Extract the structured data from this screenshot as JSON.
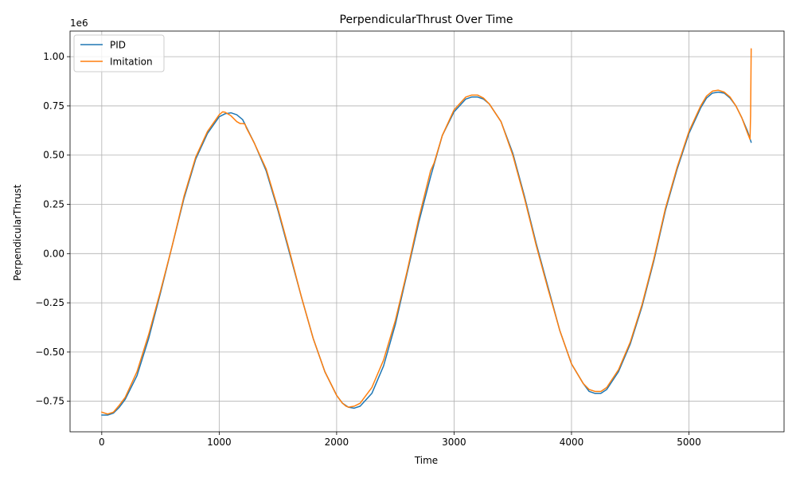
{
  "chart_data": {
    "type": "line",
    "title": "PerpendicularThrust Over Time",
    "xlabel": "Time",
    "ylabel": "PerpendicularThrust",
    "y_scale_label": "1e6",
    "xlim": [
      -270,
      5810
    ],
    "ylim": [
      -0.905,
      1.13
    ],
    "xticks": [
      0,
      1000,
      2000,
      3000,
      4000,
      5000
    ],
    "xtick_labels": [
      "0",
      "1000",
      "2000",
      "3000",
      "4000",
      "5000"
    ],
    "yticks": [
      -0.75,
      -0.5,
      -0.25,
      0.0,
      0.25,
      0.5,
      0.75,
      1.0
    ],
    "ytick_labels": [
      "−0.75",
      "−0.50",
      "−0.25",
      "0.00",
      "0.25",
      "0.50",
      "0.75",
      "1.00"
    ],
    "grid": true,
    "legend_position": "top-left",
    "series": [
      {
        "name": "PID",
        "color": "#1f77b4",
        "x": [
          0,
          50,
          100,
          150,
          200,
          300,
          400,
          500,
          600,
          700,
          800,
          900,
          1000,
          1050,
          1100,
          1150,
          1200,
          1300,
          1400,
          1500,
          1600,
          1700,
          1800,
          1900,
          2000,
          2050,
          2100,
          2150,
          2200,
          2300,
          2400,
          2500,
          2600,
          2700,
          2800,
          2900,
          3000,
          3100,
          3150,
          3200,
          3250,
          3300,
          3400,
          3500,
          3600,
          3700,
          3800,
          3900,
          4000,
          4100,
          4150,
          4200,
          4250,
          4300,
          4400,
          4500,
          4600,
          4700,
          4800,
          4900,
          5000,
          5100,
          5150,
          5200,
          5250,
          5300,
          5350,
          5400,
          5450,
          5500,
          5530
        ],
        "y": [
          -0.82,
          -0.82,
          -0.81,
          -0.78,
          -0.74,
          -0.62,
          -0.43,
          -0.2,
          0.04,
          0.28,
          0.48,
          0.61,
          0.695,
          0.71,
          0.715,
          0.705,
          0.68,
          0.56,
          0.42,
          0.22,
          0.0,
          -0.22,
          -0.43,
          -0.6,
          -0.72,
          -0.76,
          -0.78,
          -0.785,
          -0.775,
          -0.71,
          -0.57,
          -0.36,
          -0.1,
          0.16,
          0.39,
          0.6,
          0.72,
          0.785,
          0.795,
          0.795,
          0.785,
          0.76,
          0.67,
          0.51,
          0.29,
          0.05,
          -0.17,
          -0.39,
          -0.56,
          -0.66,
          -0.7,
          -0.71,
          -0.71,
          -0.69,
          -0.6,
          -0.46,
          -0.27,
          -0.04,
          0.22,
          0.43,
          0.61,
          0.74,
          0.79,
          0.815,
          0.82,
          0.815,
          0.79,
          0.75,
          0.69,
          0.62,
          0.565
        ]
      },
      {
        "name": "Imitation",
        "color": "#ff7f0e",
        "x": [
          0,
          50,
          100,
          150,
          200,
          300,
          400,
          500,
          600,
          700,
          800,
          900,
          1000,
          1030,
          1050,
          1100,
          1150,
          1180,
          1200,
          1220,
          1230,
          1300,
          1400,
          1500,
          1600,
          1700,
          1800,
          1900,
          2000,
          2050,
          2080,
          2100,
          2150,
          2200,
          2300,
          2400,
          2500,
          2600,
          2700,
          2800,
          2830,
          2900,
          3000,
          3100,
          3150,
          3200,
          3250,
          3300,
          3400,
          3500,
          3600,
          3700,
          3800,
          3900,
          4000,
          4100,
          4150,
          4200,
          4250,
          4300,
          4400,
          4500,
          4600,
          4700,
          4800,
          4900,
          5000,
          5100,
          5150,
          5200,
          5250,
          5300,
          5350,
          5400,
          5450,
          5500,
          5520,
          5525,
          5528,
          5530
        ],
        "y": [
          -0.805,
          -0.815,
          -0.805,
          -0.77,
          -0.73,
          -0.6,
          -0.41,
          -0.19,
          0.04,
          0.29,
          0.49,
          0.62,
          0.705,
          0.72,
          0.718,
          0.7,
          0.67,
          0.66,
          0.66,
          0.658,
          0.64,
          0.56,
          0.43,
          0.23,
          0.01,
          -0.22,
          -0.43,
          -0.6,
          -0.72,
          -0.76,
          -0.775,
          -0.78,
          -0.775,
          -0.76,
          -0.68,
          -0.54,
          -0.34,
          -0.09,
          0.18,
          0.42,
          0.46,
          0.6,
          0.73,
          0.795,
          0.805,
          0.805,
          0.79,
          0.76,
          0.67,
          0.5,
          0.28,
          0.04,
          -0.18,
          -0.39,
          -0.56,
          -0.66,
          -0.69,
          -0.7,
          -0.7,
          -0.68,
          -0.59,
          -0.45,
          -0.26,
          -0.03,
          0.23,
          0.44,
          0.62,
          0.75,
          0.8,
          0.825,
          0.83,
          0.82,
          0.795,
          0.75,
          0.69,
          0.61,
          0.58,
          0.7,
          0.9,
          1.04
        ]
      }
    ]
  }
}
